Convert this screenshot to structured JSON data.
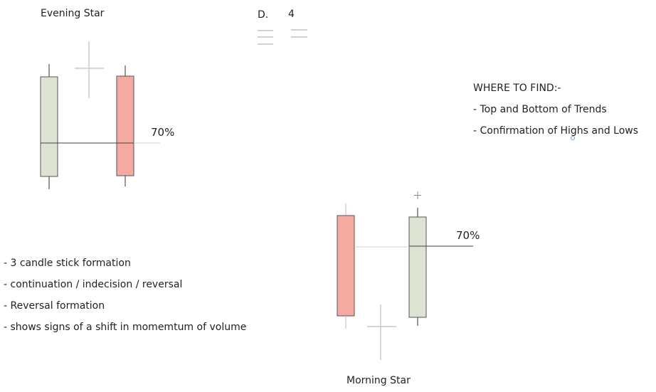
{
  "evening_star": {
    "title": "Evening Star",
    "percent_label": "70%"
  },
  "morning_star": {
    "title": "Morning Star",
    "percent_label": "70%"
  },
  "header": {
    "d_label": "D.",
    "number": "4"
  },
  "where_to_find": {
    "heading": "WHERE TO FIND:-",
    "items": [
      "- Top and Bottom of Trends",
      "- Confirmation of Highs and Lows"
    ]
  },
  "notes": [
    "- 3 candle stick formation",
    "- continuation / indecision / reversal",
    "- Reversal formation",
    "- shows signs of a shift in momemtum of volume"
  ],
  "colors": {
    "bullish_fill": "#dce3d3",
    "bearish_fill": "#f4aaa0",
    "outline": "#555555",
    "doji": "#c8c8c8"
  }
}
